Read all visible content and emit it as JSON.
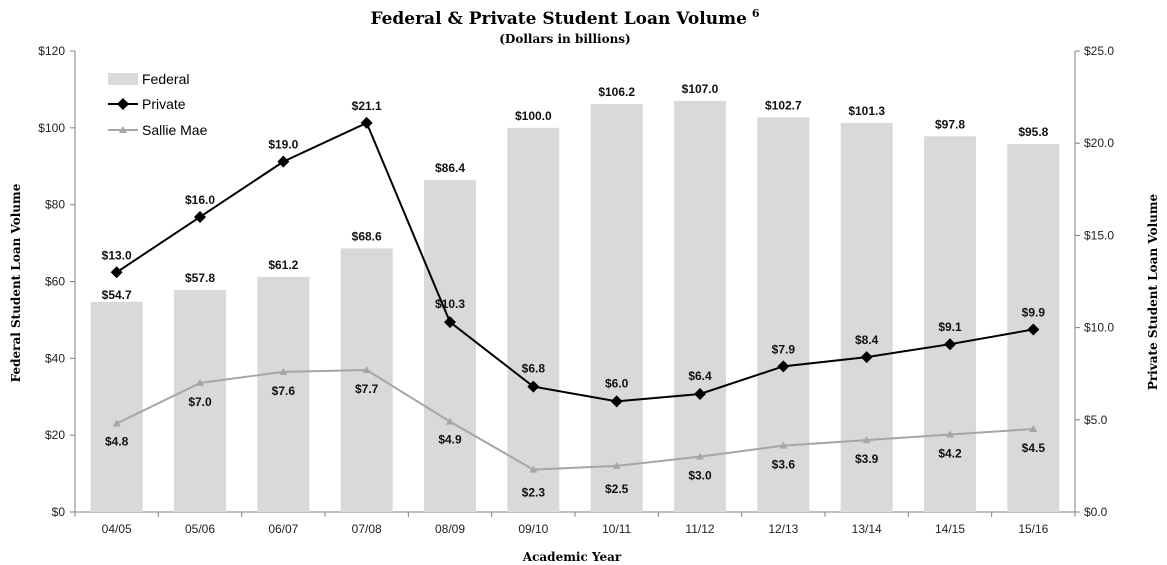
{
  "chart_data": {
    "type": "bar",
    "title": "Federal & Private Student Loan Volume",
    "title_superscript": "6",
    "subtitle": "(Dollars in billions)",
    "xlabel": "Academic Year",
    "ylabel": "Federal Student Loan Volume",
    "y2label": "Private Student Loan Volume",
    "categories": [
      "04/05",
      "05/06",
      "06/07",
      "07/08",
      "08/09",
      "09/10",
      "10/11",
      "11/12",
      "12/13",
      "13/14",
      "14/15",
      "15/16"
    ],
    "ylim": [
      0,
      120
    ],
    "y2lim": [
      0,
      25
    ],
    "yticks": [
      "$0",
      "$20",
      "$40",
      "$60",
      "$80",
      "$100",
      "$120"
    ],
    "y2ticks": [
      "$0.0",
      "$5.0",
      "$10.0",
      "$15.0",
      "$20.0",
      "$25.0"
    ],
    "legend_position": "top-left",
    "grid": false,
    "series": [
      {
        "name": "Federal",
        "type": "bar",
        "axis": "left",
        "color": "#d9d9d9",
        "values": [
          54.7,
          57.8,
          61.2,
          68.6,
          86.4,
          100.0,
          106.2,
          107.0,
          102.7,
          101.3,
          97.8,
          95.8
        ],
        "labels": [
          "$54.7",
          "$57.8",
          "$61.2",
          "$68.6",
          "$86.4",
          "$100.0",
          "$106.2",
          "$107.0",
          "$102.7",
          "$101.3",
          "$97.8",
          "$95.8"
        ]
      },
      {
        "name": "Private",
        "type": "line",
        "axis": "right",
        "color": "#000000",
        "marker": "diamond",
        "values": [
          13.0,
          16.0,
          19.0,
          21.1,
          10.3,
          6.8,
          6.0,
          6.4,
          7.9,
          8.4,
          9.1,
          9.9
        ],
        "labels": [
          "$13.0",
          "$16.0",
          "$19.0",
          "$21.1",
          "$10.3",
          "$6.8",
          "$6.0",
          "$6.4",
          "$7.9",
          "$8.4",
          "$9.1",
          "$9.9"
        ]
      },
      {
        "name": "Sallie Mae",
        "type": "line",
        "axis": "right",
        "color": "#a6a6a6",
        "marker": "triangle",
        "values": [
          4.8,
          7.0,
          7.6,
          7.7,
          4.9,
          2.3,
          2.5,
          3.0,
          3.6,
          3.9,
          4.2,
          4.5
        ],
        "labels": [
          "$4.8",
          "$7.0",
          "$7.6",
          "$7.7",
          "$4.9",
          "$2.3",
          "$2.5",
          "$3.0",
          "$3.6",
          "$3.9",
          "$4.2",
          "$4.5"
        ]
      }
    ]
  }
}
